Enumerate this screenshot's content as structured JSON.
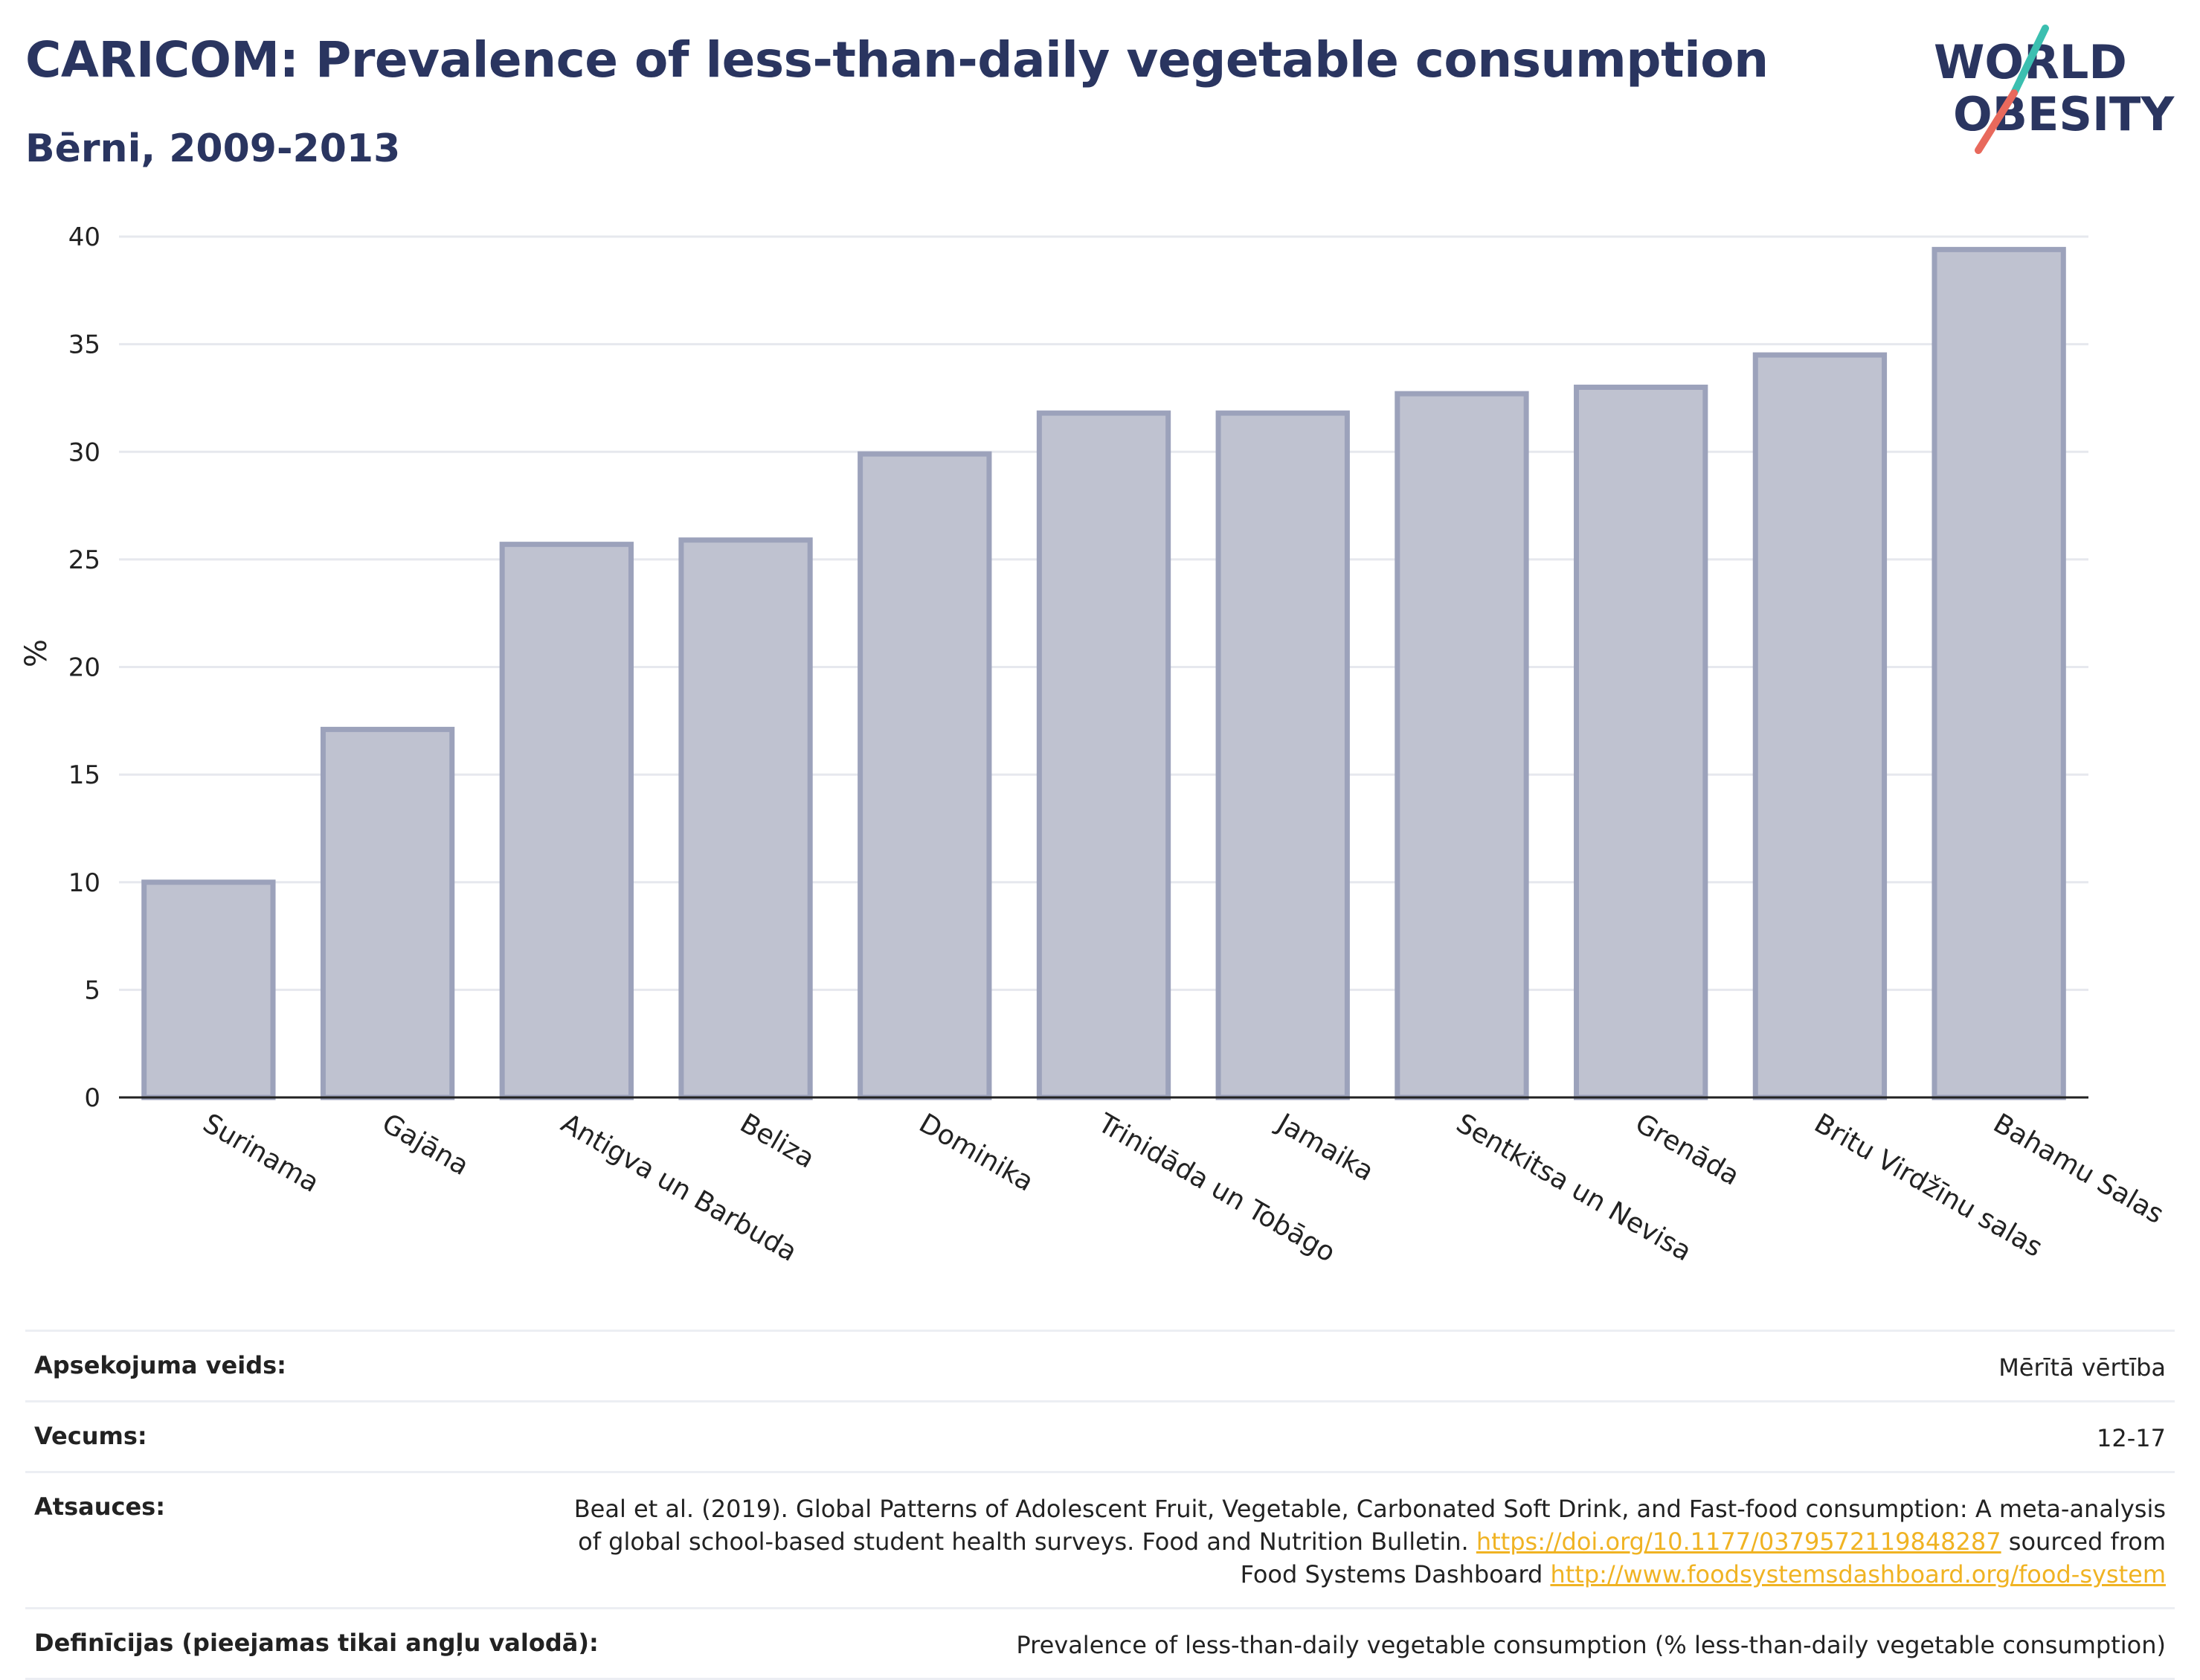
{
  "header": {
    "title": "CARICOM: Prevalence of less-than-daily vegetable consumption",
    "subtitle": "Bērni, 2009-2013"
  },
  "logo": {
    "line1": "WORLD",
    "line2": "OBESITY",
    "colors": {
      "text": "#2a3560",
      "slash_top": "#3bbfb0",
      "slash_bottom": "#e8695c"
    }
  },
  "chart_data": {
    "type": "bar",
    "title": "CARICOM: Prevalence of less-than-daily vegetable consumption",
    "subtitle": "Bērni, 2009-2013",
    "ylabel": "%",
    "xlabel": "",
    "ylim": [
      0,
      40
    ],
    "yticks": [
      0,
      5,
      10,
      15,
      20,
      25,
      30,
      35,
      40
    ],
    "grid": true,
    "categories": [
      "Surinama",
      "Gajāna",
      "Antigva un Barbuda",
      "Beliza",
      "Dominika",
      "Trinidāda un Tobāgo",
      "Jamaika",
      "Sentkitsa un Nevisa",
      "Grenāda",
      "Britu Virdžīnu salas",
      "Bahamu Salas"
    ],
    "values": [
      10.0,
      17.1,
      25.7,
      25.9,
      29.9,
      31.8,
      31.8,
      32.7,
      33.0,
      34.5,
      39.4
    ],
    "colors": {
      "bar_fill": "#bfc2d0",
      "bar_stroke": "#9ca2bb",
      "grid": "#e6e8ee",
      "axis": "#222222"
    }
  },
  "meta": {
    "rows": [
      {
        "label": "Apsekojuma veids:",
        "value": "Mērītā vērtība"
      },
      {
        "label": "Vecums:",
        "value": "12-17"
      },
      {
        "label": "Atsauces:",
        "value_parts": {
          "text1": "Beal et al. (2019). Global Patterns of Adolescent Fruit, Vegetable, Carbonated Soft Drink, and Fast-food consumption: A meta-analysis of global school-based student health surveys. Food and Nutrition Bulletin. ",
          "link1": "https://doi.org/10.1177/0379572119848287",
          "text2": " sourced from Food Systems Dashboard ",
          "link2": "http://www.foodsystemsdashboard.org/food-system"
        }
      },
      {
        "label": "Definīcijas (pieejamas tikai angļu valodā):",
        "value": "Prevalence of less-than-daily vegetable consumption (% less-than-daily vegetable consumption)"
      }
    ]
  }
}
